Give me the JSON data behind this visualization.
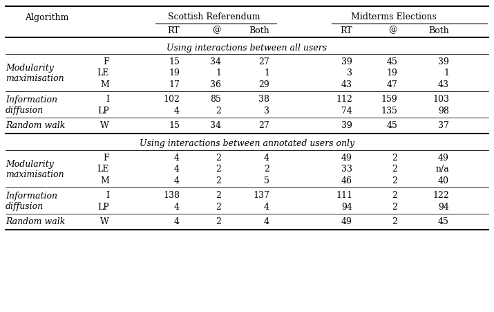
{
  "section1_label": "Using interactions between all users",
  "section2_label": "Using interactions between annotated users only",
  "rows_section1": [
    {
      "algorithm": "Modularity\nmaximisation",
      "sub": [
        "F",
        "LE",
        "M"
      ],
      "sr_rt": [
        "15",
        "19",
        "17"
      ],
      "sr_at": [
        "34",
        "1",
        "36"
      ],
      "sr_both": [
        "27",
        "1",
        "29"
      ],
      "me_rt": [
        "39",
        "3",
        "43"
      ],
      "me_at": [
        "45",
        "19",
        "47"
      ],
      "me_both": [
        "39",
        "1",
        "43"
      ]
    },
    {
      "algorithm": "Information\ndiffusion",
      "sub": [
        "I",
        "LP"
      ],
      "sr_rt": [
        "102",
        "4"
      ],
      "sr_at": [
        "85",
        "2"
      ],
      "sr_both": [
        "38",
        "3"
      ],
      "me_rt": [
        "112",
        "74"
      ],
      "me_at": [
        "159",
        "135"
      ],
      "me_both": [
        "103",
        "98"
      ]
    },
    {
      "algorithm": "Random walk",
      "sub": [
        "W"
      ],
      "sr_rt": [
        "15"
      ],
      "sr_at": [
        "34"
      ],
      "sr_both": [
        "27"
      ],
      "me_rt": [
        "39"
      ],
      "me_at": [
        "45"
      ],
      "me_both": [
        "37"
      ]
    }
  ],
  "rows_section2": [
    {
      "algorithm": "Modularity\nmaximisation",
      "sub": [
        "F",
        "LE",
        "M"
      ],
      "sr_rt": [
        "4",
        "4",
        "4"
      ],
      "sr_at": [
        "2",
        "2",
        "2"
      ],
      "sr_both": [
        "4",
        "2",
        "5"
      ],
      "me_rt": [
        "49",
        "33",
        "46"
      ],
      "me_at": [
        "2",
        "2",
        "2"
      ],
      "me_both": [
        "49",
        "n/a",
        "40"
      ]
    },
    {
      "algorithm": "Information\ndiffusion",
      "sub": [
        "I",
        "LP"
      ],
      "sr_rt": [
        "138",
        "4"
      ],
      "sr_at": [
        "2",
        "2"
      ],
      "sr_both": [
        "137",
        "4"
      ],
      "me_rt": [
        "111",
        "94"
      ],
      "me_at": [
        "2",
        "2"
      ],
      "me_both": [
        "122",
        "94"
      ]
    },
    {
      "algorithm": "Random walk",
      "sub": [
        "W"
      ],
      "sr_rt": [
        "4"
      ],
      "sr_at": [
        "2"
      ],
      "sr_both": [
        "4"
      ],
      "me_rt": [
        "49"
      ],
      "me_at": [
        "2"
      ],
      "me_both": [
        "45"
      ]
    }
  ],
  "bg_color": "#ffffff",
  "text_color": "#000000",
  "font_size": 9.0
}
